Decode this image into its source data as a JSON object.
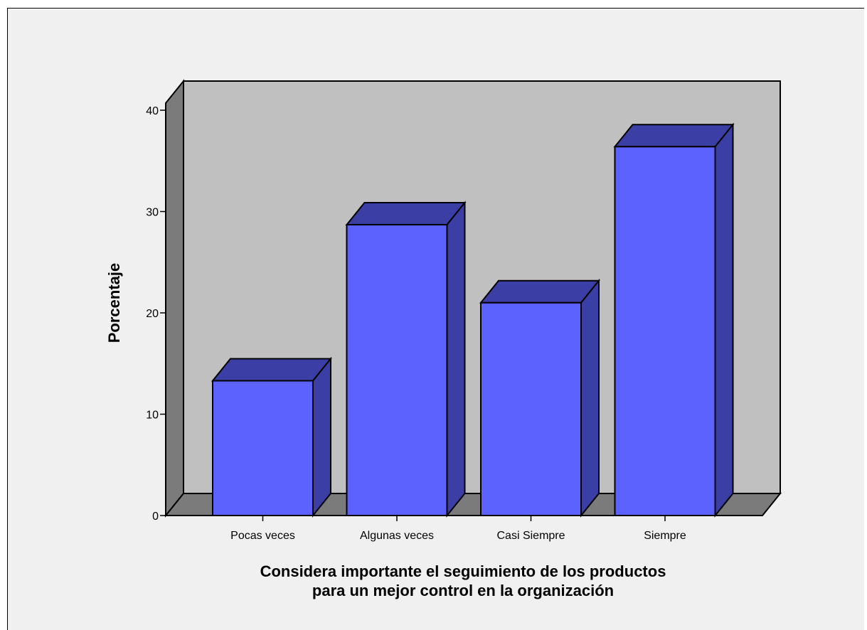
{
  "chart_data": {
    "type": "bar",
    "title": "",
    "categories": [
      "Pocas veces",
      "Algunas veces",
      "Casi Siempre",
      "Siempre"
    ],
    "values": [
      13.3,
      28.7,
      21.0,
      36.4
    ],
    "ylabel": "Porcentaje",
    "xlabel_lines": [
      "Considera importante el seguimiento de los productos",
      "para un mejor control en la organización"
    ],
    "yticks": [
      0,
      10,
      20,
      30,
      40
    ],
    "ylim": [
      0,
      40
    ],
    "grid": false,
    "style": "3d",
    "colors": {
      "bar_front": "#5b62fe",
      "bar_top": "#3b3fa5",
      "bar_side": "#3b3fa5",
      "back_wall": "#c0c0c0",
      "side_wall": "#7b7b7b",
      "floor": "#7b7b7b",
      "background": "#f0f0f0"
    }
  }
}
